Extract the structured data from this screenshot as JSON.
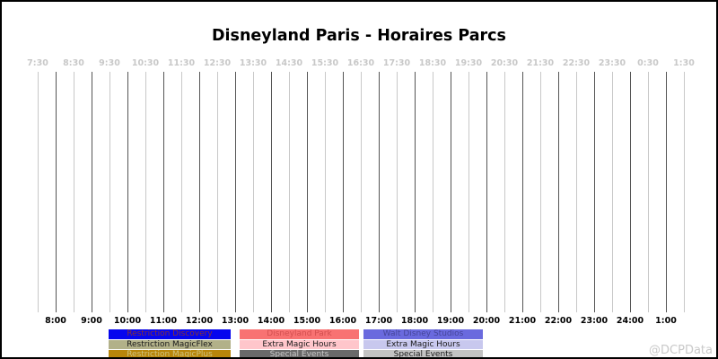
{
  "title": "Disneyland Paris - Horaires Parcs",
  "watermark": "@DCPData",
  "chart_data": {
    "type": "timeline",
    "title": "Disneyland Paris - Horaires Parcs",
    "x_axis": {
      "start_hour": 7.5,
      "end_hour": 25.5,
      "grid_interval_minutes": 30,
      "top_tick_labels": [
        "7:30",
        "8:30",
        "9:30",
        "10:30",
        "11:30",
        "12:30",
        "13:30",
        "14:30",
        "15:30",
        "16:30",
        "17:30",
        "18:30",
        "19:30",
        "20:30",
        "21:30",
        "22:30",
        "23:30",
        "0:30",
        "1:30"
      ],
      "bottom_tick_labels": [
        "8:00",
        "9:00",
        "10:00",
        "11:00",
        "12:00",
        "13:00",
        "14:00",
        "15:00",
        "16:00",
        "17:00",
        "18:00",
        "19:00",
        "20:00",
        "21:00",
        "22:00",
        "23:00",
        "24:00",
        "1:00"
      ]
    },
    "series": [],
    "colors": {
      "grid_major": "#555555",
      "grid_minor": "#c8c8c8",
      "top_label": "#c8c8c8",
      "bottom_label": "#000000"
    },
    "legend": [
      {
        "items": [
          {
            "label": "Restriction Discovery",
            "bg": "#0505ee",
            "fg": "#883333"
          },
          {
            "label": "Restriction MagicFlex",
            "bg": "#b2b189",
            "fg": "#1a1a1a"
          },
          {
            "label": "Restriction MagicPlus",
            "bg": "#b8860b",
            "fg": "#cfc37e"
          }
        ]
      },
      {
        "items": [
          {
            "label": "Disneyland Park",
            "bg": "#f87272",
            "fg": "#d34f4f"
          },
          {
            "label": "Extra Magic Hours",
            "bg": "#ffc6cb",
            "fg": "#1a1a1a"
          },
          {
            "label": "Special Events",
            "bg": "#6a6a6a",
            "fg": "#c9c9c9"
          }
        ]
      },
      {
        "items": [
          {
            "label": "Walt Disney Studios",
            "bg": "#6a6ade",
            "fg": "#45459a"
          },
          {
            "label": "Extra Magic Hours",
            "bg": "#c8c8ee",
            "fg": "#1a1a1a"
          },
          {
            "label": "Special Events",
            "bg": "#c3c3c3",
            "fg": "#1a1a1a"
          }
        ]
      }
    ]
  }
}
